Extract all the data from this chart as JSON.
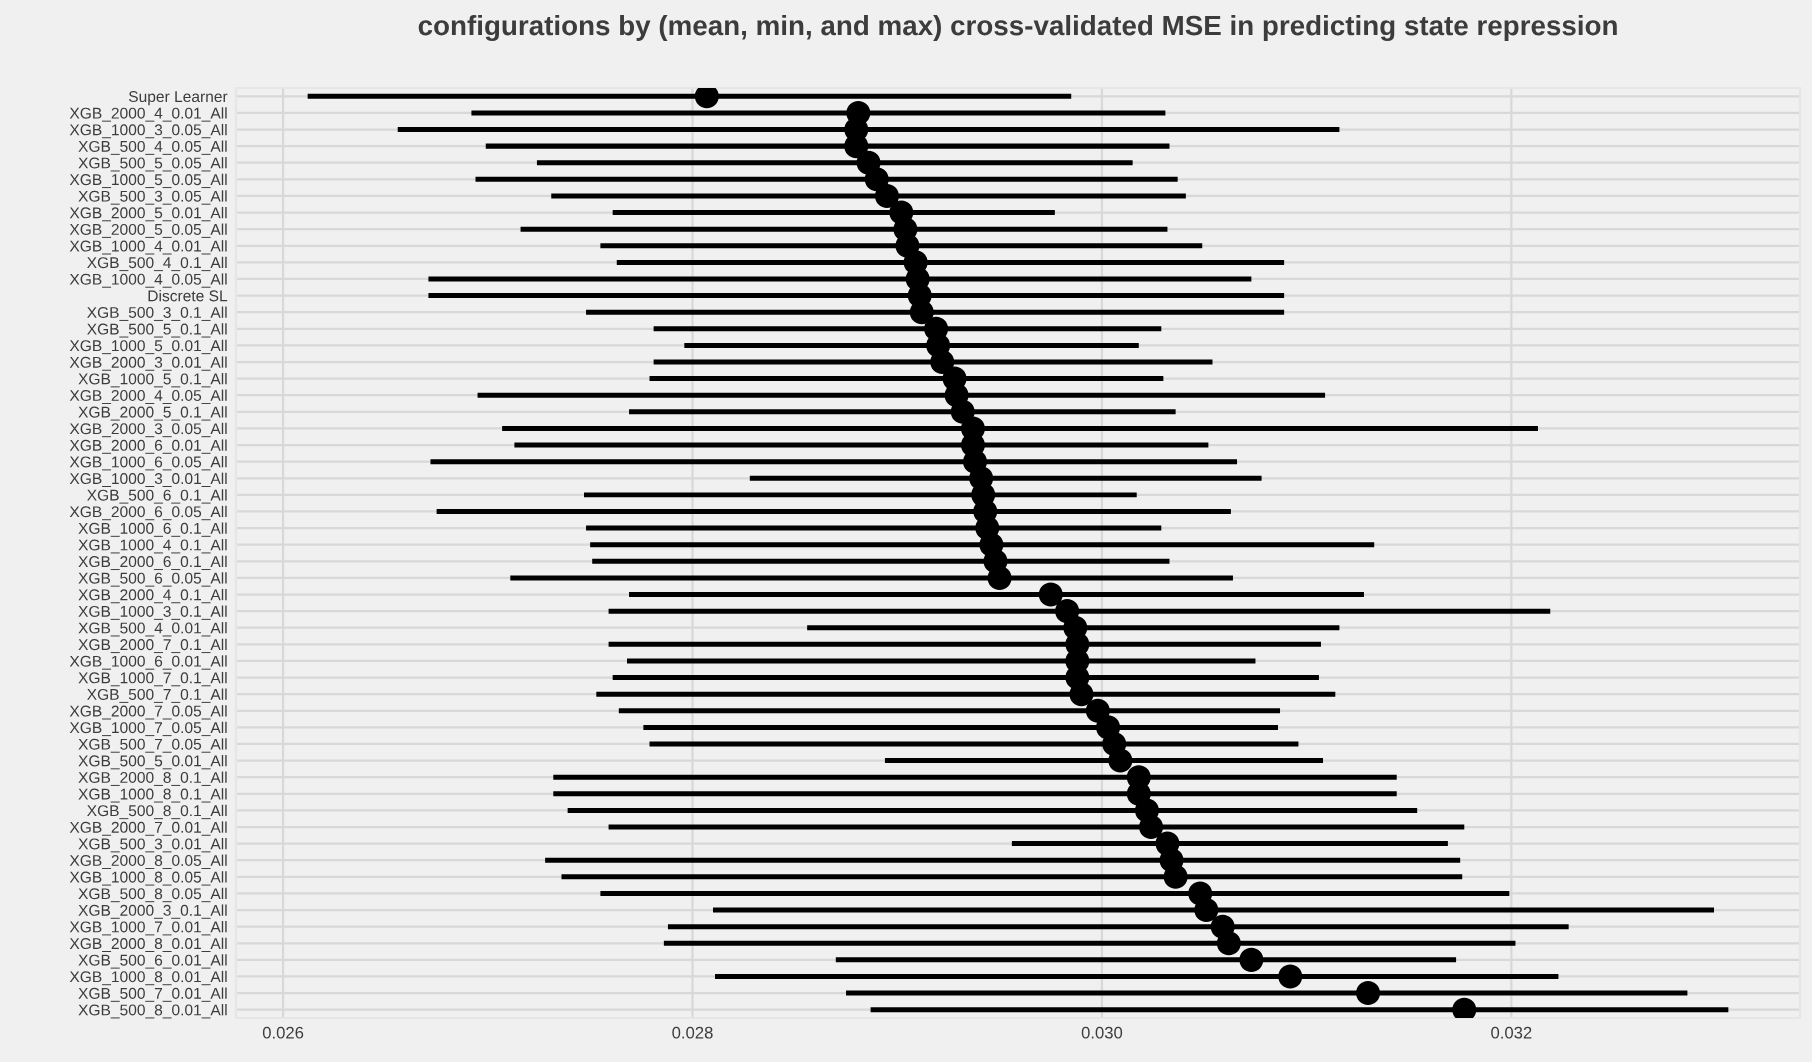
{
  "chart_data": {
    "type": "scatter",
    "orientation": "horizontal",
    "title": "configurations by (mean, min, and max) cross-validated MSE in predicting state repression",
    "categories": [
      "Super Learner",
      "XGB_2000_4_0.01_All",
      "XGB_1000_3_0.05_All",
      "XGB_500_4_0.05_All",
      "XGB_500_5_0.05_All",
      "XGB_1000_5_0.05_All",
      "XGB_500_3_0.05_All",
      "XGB_2000_5_0.01_All",
      "XGB_2000_5_0.05_All",
      "XGB_1000_4_0.01_All",
      "XGB_500_4_0.1_All",
      "XGB_1000_4_0.05_All",
      "Discrete SL",
      "XGB_500_3_0.1_All",
      "XGB_500_5_0.1_All",
      "XGB_1000_5_0.01_All",
      "XGB_2000_3_0.01_All",
      "XGB_1000_5_0.1_All",
      "XGB_2000_4_0.05_All",
      "XGB_2000_5_0.1_All",
      "XGB_2000_3_0.05_All",
      "XGB_2000_6_0.01_All",
      "XGB_1000_6_0.05_All",
      "XGB_1000_3_0.01_All",
      "XGB_500_6_0.1_All",
      "XGB_2000_6_0.05_All",
      "XGB_1000_6_0.1_All",
      "XGB_1000_4_0.1_All",
      "XGB_2000_6_0.1_All",
      "XGB_500_6_0.05_All",
      "XGB_2000_4_0.1_All",
      "XGB_1000_3_0.1_All",
      "XGB_500_4_0.01_All",
      "XGB_2000_7_0.1_All",
      "XGB_1000_6_0.01_All",
      "XGB_1000_7_0.1_All",
      "XGB_500_7_0.1_All",
      "XGB_2000_7_0.05_All",
      "XGB_1000_7_0.05_All",
      "XGB_500_7_0.05_All",
      "XGB_500_5_0.01_All",
      "XGB_2000_8_0.1_All",
      "XGB_1000_8_0.1_All",
      "XGB_500_8_0.1_All",
      "XGB_2000_7_0.01_All",
      "XGB_500_3_0.01_All",
      "XGB_2000_8_0.05_All",
      "XGB_1000_8_0.05_All",
      "XGB_500_8_0.05_All",
      "XGB_2000_3_0.1_All",
      "XGB_1000_7_0.01_All",
      "XGB_2000_8_0.01_All",
      "XGB_500_6_0.01_All",
      "XGB_1000_8_0.01_All",
      "XGB_500_7_0.01_All",
      "XGB_500_8_0.01_All"
    ],
    "values": [
      0.02807,
      0.02881,
      0.0288,
      0.0288,
      0.02886,
      0.0289,
      0.02895,
      0.02902,
      0.02904,
      0.02905,
      0.02909,
      0.0291,
      0.02911,
      0.02912,
      0.02919,
      0.0292,
      0.02922,
      0.02928,
      0.02929,
      0.02932,
      0.02937,
      0.02937,
      0.02938,
      0.02941,
      0.02942,
      0.02943,
      0.02944,
      0.02946,
      0.02948,
      0.0295,
      0.02975,
      0.02983,
      0.02987,
      0.02988,
      0.02988,
      0.02988,
      0.0299,
      0.02998,
      0.03003,
      0.03006,
      0.03009,
      0.03018,
      0.03018,
      0.03022,
      0.03024,
      0.03032,
      0.03034,
      0.03036,
      0.03048,
      0.03051,
      0.03059,
      0.03062,
      0.03073,
      0.03092,
      0.0313,
      0.03177
    ],
    "errors": [
      [
        0.02612,
        0.02985
      ],
      [
        0.02692,
        0.03031
      ],
      [
        0.02656,
        0.03116
      ],
      [
        0.02699,
        0.03033
      ],
      [
        0.02724,
        0.03015
      ],
      [
        0.02694,
        0.03037
      ],
      [
        0.02731,
        0.03041
      ],
      [
        0.02761,
        0.02977
      ],
      [
        0.02716,
        0.03032
      ],
      [
        0.02755,
        0.03049
      ],
      [
        0.02763,
        0.03089
      ],
      [
        0.02671,
        0.03073
      ],
      [
        0.02671,
        0.03089
      ],
      [
        0.02748,
        0.03089
      ],
      [
        0.02781,
        0.03029
      ],
      [
        0.02796,
        0.03018
      ],
      [
        0.02781,
        0.03054
      ],
      [
        0.02779,
        0.0303
      ],
      [
        0.02695,
        0.03109
      ],
      [
        0.02769,
        0.03036
      ],
      [
        0.02707,
        0.03213
      ],
      [
        0.02713,
        0.03052
      ],
      [
        0.02672,
        0.03066
      ],
      [
        0.02828,
        0.03078
      ],
      [
        0.02747,
        0.03017
      ],
      [
        0.02675,
        0.03063
      ],
      [
        0.02748,
        0.03029
      ],
      [
        0.0275,
        0.03133
      ],
      [
        0.02751,
        0.03033
      ],
      [
        0.02711,
        0.03064
      ],
      [
        0.02769,
        0.03128
      ],
      [
        0.02759,
        0.03219
      ],
      [
        0.02856,
        0.03116
      ],
      [
        0.02759,
        0.03107
      ],
      [
        0.02768,
        0.03075
      ],
      [
        0.02761,
        0.03106
      ],
      [
        0.02753,
        0.03114
      ],
      [
        0.02764,
        0.03087
      ],
      [
        0.02776,
        0.03086
      ],
      [
        0.02779,
        0.03096
      ],
      [
        0.02894,
        0.03108
      ],
      [
        0.02732,
        0.03144
      ],
      [
        0.02732,
        0.03144
      ],
      [
        0.02739,
        0.03154
      ],
      [
        0.02759,
        0.03177
      ],
      [
        0.02956,
        0.03169
      ],
      [
        0.02728,
        0.03175
      ],
      [
        0.02736,
        0.03176
      ],
      [
        0.02755,
        0.03199
      ],
      [
        0.0281,
        0.03299
      ],
      [
        0.02788,
        0.03228
      ],
      [
        0.02786,
        0.03202
      ],
      [
        0.0287,
        0.03173
      ],
      [
        0.02811,
        0.03223
      ],
      [
        0.02875,
        0.03286
      ],
      [
        0.02887,
        0.03306
      ]
    ],
    "color": "#000000",
    "marker": "circle",
    "xlim": [
      0.02577,
      0.03341
    ],
    "xticks": [
      {
        "value": 0.026,
        "label": "0.026"
      },
      {
        "value": 0.028,
        "label": "0.028"
      },
      {
        "value": 0.03,
        "label": "0.030"
      },
      {
        "value": 0.032,
        "label": "0.032"
      }
    ],
    "grid": true
  }
}
